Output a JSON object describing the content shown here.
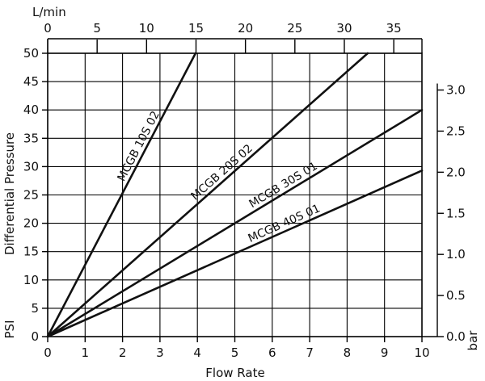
{
  "chart_data": {
    "type": "line",
    "xlabel": "Flow Rate",
    "ylabel": "Differential Pressure",
    "y_unit_label": "PSI",
    "top_axis_label": "L/min",
    "right_axis_label": "bar",
    "xlim": [
      0,
      10
    ],
    "ylim": [
      0,
      50
    ],
    "top_xlim": [
      0,
      37.85
    ],
    "right_ylim": [
      0,
      3.447
    ],
    "x_ticks": [
      0,
      1,
      2,
      3,
      4,
      5,
      6,
      7,
      8,
      9,
      10
    ],
    "x_tick_labels": [
      "0",
      "1",
      "2",
      "3",
      "4",
      "5",
      "6",
      "7",
      "8",
      "9",
      "10"
    ],
    "y_ticks": [
      0,
      5,
      10,
      15,
      20,
      25,
      30,
      35,
      40,
      45,
      50
    ],
    "y_tick_labels": [
      "0",
      "5",
      "10",
      "15",
      "20",
      "25",
      "30",
      "35",
      "40",
      "45",
      "50"
    ],
    "top_ticks": [
      0,
      5,
      10,
      15,
      20,
      25,
      30,
      35
    ],
    "top_tick_labels": [
      "0",
      "5",
      "10",
      "15",
      "20",
      "25",
      "30",
      "35"
    ],
    "right_ticks": [
      0.0,
      0.5,
      1.0,
      1.5,
      2.0,
      2.5,
      3.0
    ],
    "right_tick_labels": [
      "0.0",
      "0.5",
      "1.0",
      "1.5",
      "2.0",
      "2.5",
      "3.0"
    ],
    "grid": true,
    "line_color": "#111111",
    "grid_color": "#000000",
    "series": [
      {
        "name": "MCGB 10S 02",
        "x": [
          0,
          3.95
        ],
        "y": [
          0,
          50
        ]
      },
      {
        "name": "MCGB 20S 02",
        "x": [
          0,
          8.55
        ],
        "y": [
          0,
          50
        ]
      },
      {
        "name": "MCGB 30S 01",
        "x": [
          0,
          10
        ],
        "y": [
          0,
          40
        ]
      },
      {
        "name": "MCGB 40S 01",
        "x": [
          0,
          10
        ],
        "y": [
          0,
          29.3
        ]
      }
    ]
  }
}
